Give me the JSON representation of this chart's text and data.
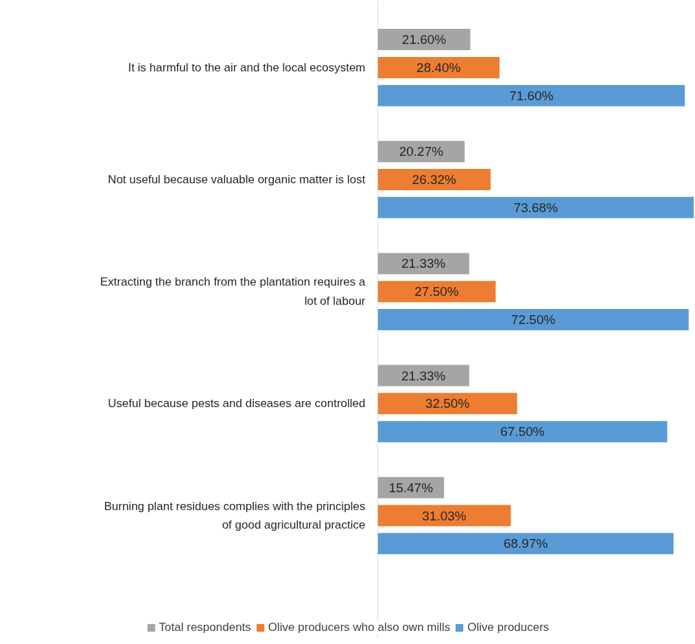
{
  "chart_data": {
    "type": "bar",
    "orientation": "horizontal",
    "categories": [
      "It is harmful to the air and the local ecosystem",
      "Not useful because valuable organic matter is lost",
      "Extracting the branch from the plantation requires a lot of labour",
      "Useful because pests and diseases are controlled",
      "Burning plant residues complies with the principles of good agricultural practice"
    ],
    "series": [
      {
        "name": "Total respondents",
        "color": "#a5a5a5",
        "values": [
          21.6,
          20.27,
          21.33,
          21.33,
          15.47
        ],
        "value_labels": [
          "21.60%",
          "20.27%",
          "21.33%",
          "21.33%",
          "15.47%"
        ]
      },
      {
        "name": "Olive producers who also own mills",
        "color": "#ed7d31",
        "values": [
          28.4,
          26.32,
          27.5,
          32.5,
          31.03
        ],
        "value_labels": [
          "28.40%",
          "26.32%",
          "27.50%",
          "32.50%",
          "31.03%"
        ]
      },
      {
        "name": "Olive producers",
        "color": "#5b9bd5",
        "values": [
          71.6,
          73.68,
          72.5,
          67.5,
          68.97
        ],
        "value_labels": [
          "71.60%",
          "73.68%",
          "72.50%",
          "67.50%",
          "68.97%"
        ]
      }
    ],
    "legend": "bottom",
    "grid": false
  }
}
